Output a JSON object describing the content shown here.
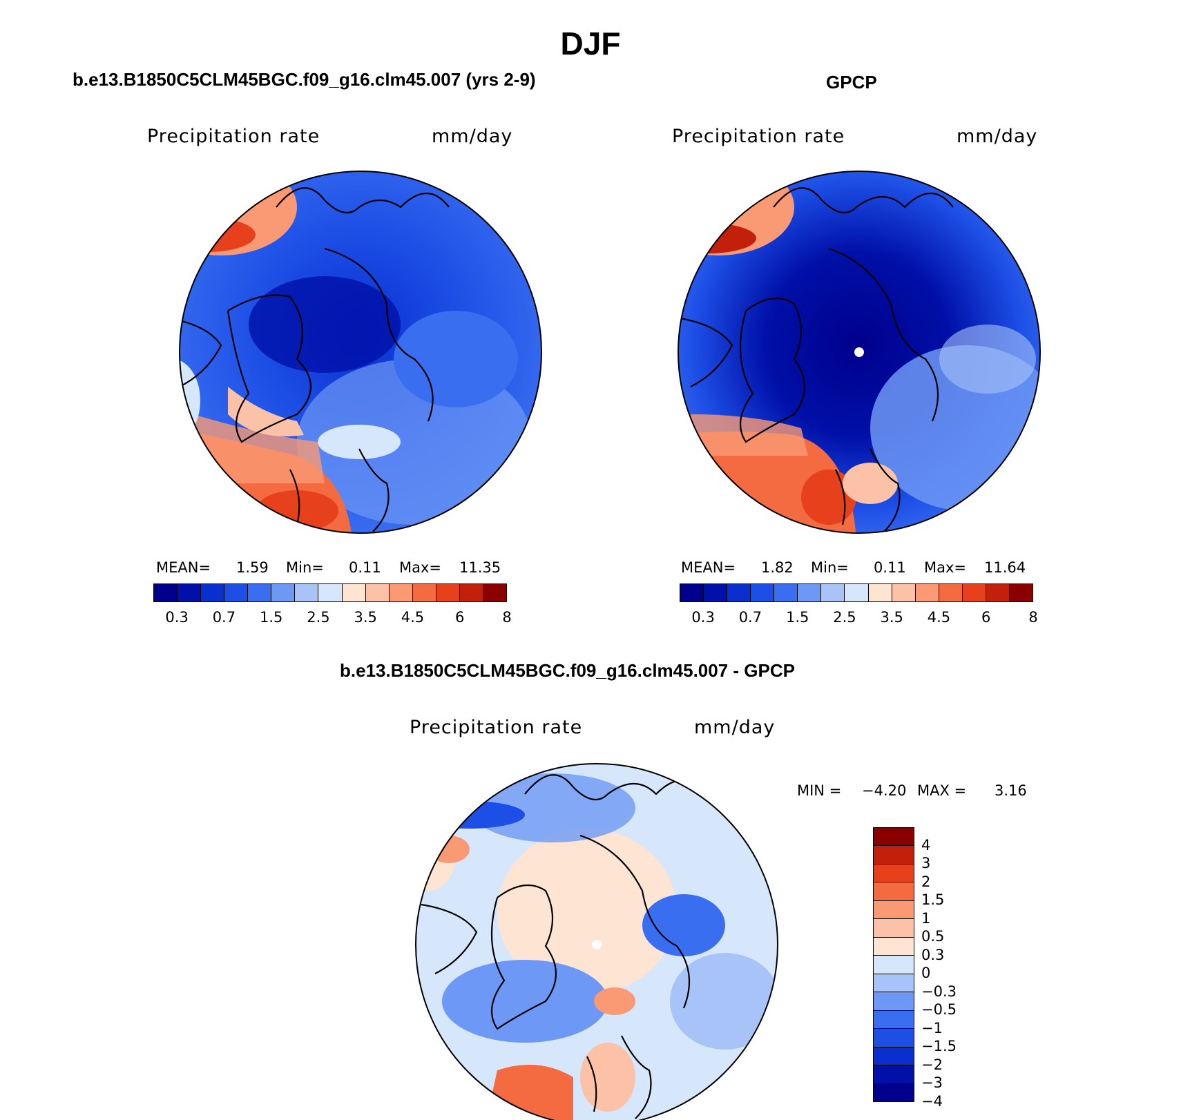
{
  "title": "DJF",
  "panels": [
    {
      "title": "b.e13.B1850C5CLM45BGC.f09_g16.clm45.007 (yrs 2-9)",
      "variable": "Precipitation rate",
      "units": "mm/day",
      "stats": {
        "mean_label": "MEAN=",
        "mean": "1.59",
        "min_label": "Min=",
        "min": "0.11",
        "max_label": "Max=",
        "max": "11.35"
      }
    },
    {
      "title": "GPCP",
      "variable": "Precipitation rate",
      "units": "mm/day",
      "stats": {
        "mean_label": "MEAN=",
        "mean": "1.82",
        "min_label": "Min=",
        "min": "0.11",
        "max_label": "Max=",
        "max": "11.64"
      }
    },
    {
      "title": "b.e13.B1850C5CLM45BGC.f09_g16.clm45.007 - GPCP",
      "variable": "Precipitation rate",
      "units": "mm/day",
      "stats": {
        "min_label": "MIN =",
        "min": "−4.20",
        "max_label": "MAX =",
        "max": "3.16"
      }
    }
  ],
  "colorbar_abs": {
    "colors": [
      "#00008c",
      "#0010a8",
      "#0a2fcf",
      "#1d4fe6",
      "#3a6ef0",
      "#6d98f5",
      "#a7c3f8",
      "#d6e6fb",
      "#fde4d3",
      "#fcc2a8",
      "#f99a74",
      "#f46a41",
      "#e6401c",
      "#c3200c",
      "#8a0000"
    ],
    "tick_labels": [
      "0.3",
      "0.7",
      "1.5",
      "2.5",
      "3.5",
      "4.5",
      "6",
      "8"
    ]
  },
  "colorbar_diff": {
    "colors_top_to_bottom": [
      "#8a0000",
      "#c3200c",
      "#e6401c",
      "#f46a41",
      "#f99a74",
      "#fcc2a8",
      "#fde4d3",
      "#d6e6fb",
      "#a7c3f8",
      "#6d98f5",
      "#3a6ef0",
      "#1d4fe6",
      "#0a2fcf",
      "#0010a8",
      "#00008c"
    ],
    "tick_labels_top_to_bottom": [
      "4",
      "3",
      "2",
      "1.5",
      "1",
      "0.5",
      "0.3",
      "0",
      "−0.3",
      "−0.5",
      "−1",
      "−1.5",
      "−2",
      "−3",
      "−4"
    ]
  }
}
